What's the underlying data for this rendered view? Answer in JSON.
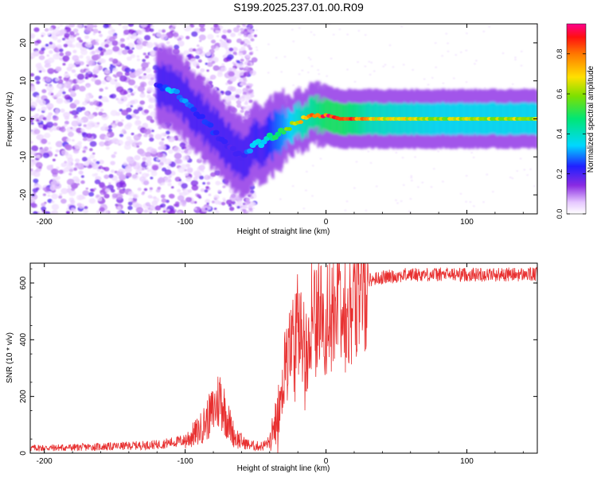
{
  "title": "S199.2025.237.01.00.R09",
  "chart_data": [
    {
      "type": "heatmap",
      "name": "spectrogram",
      "xlabel": "Height of straight line (km)",
      "ylabel": "Frequency (Hz)",
      "xlim": [
        -210,
        150
      ],
      "ylim": [
        -25,
        25
      ],
      "xticks": [
        -200,
        -100,
        0,
        100
      ],
      "xtick_labels": [
        "-200",
        "-100",
        "0",
        "100"
      ],
      "yticks": [
        -20,
        -10,
        0,
        10,
        20
      ],
      "ytick_labels": [
        "-20",
        "-10",
        "0",
        "10",
        "20"
      ],
      "colorbar": {
        "label": "Normalized spectral amplitude",
        "range": [
          0.0,
          0.95
        ],
        "ticks": [
          0.0,
          0.2,
          0.4,
          0.6,
          0.8
        ],
        "tick_labels": [
          "0.0",
          "0.2",
          "0.4",
          "0.6",
          "0.8"
        ],
        "colormap": "rainbow (white-violet-blue-cyan-green-yellow-orange-red-magenta)"
      },
      "ridge": {
        "description": "frequency centre of the dominant signal vs height",
        "x": [
          -120,
          -110,
          -100,
          -90,
          -80,
          -70,
          -60,
          -55,
          -50,
          -45,
          -40,
          -30,
          -20,
          -10,
          0,
          10,
          20,
          30,
          50,
          80,
          110,
          150
        ],
        "y": [
          9,
          8,
          5,
          1,
          -3,
          -7,
          -10,
          -9,
          -6,
          -7,
          -5,
          -3,
          -1,
          1,
          1,
          0,
          0,
          0,
          0,
          0,
          0,
          0
        ],
        "amplitude": [
          0.2,
          0.35,
          0.3,
          0.25,
          0.25,
          0.2,
          0.2,
          0.3,
          0.4,
          0.35,
          0.45,
          0.55,
          0.7,
          0.8,
          0.9,
          0.9,
          0.85,
          0.75,
          0.7,
          0.65,
          0.65,
          0.65
        ]
      },
      "scattered_noise_region": [
        -210,
        -60
      ]
    },
    {
      "type": "line",
      "name": "snr",
      "xlabel": "Height of straight line (km)",
      "ylabel": "SNR (10 * v/v)",
      "xlim": [
        -210,
        150
      ],
      "ylim": [
        0,
        670
      ],
      "xticks": [
        -200,
        -100,
        0,
        100
      ],
      "xtick_labels": [
        "-200",
        "-100",
        "0",
        "100"
      ],
      "yticks": [
        0,
        200,
        400,
        600
      ],
      "ytick_labels": [
        "0",
        "200",
        "400",
        "600"
      ],
      "color": "#e83030",
      "series": [
        {
          "name": "SNR",
          "x": [
            -210,
            -180,
            -150,
            -120,
            -100,
            -90,
            -80,
            -75,
            -70,
            -65,
            -60,
            -55,
            -50,
            -45,
            -40,
            -35,
            -32,
            -28,
            -25,
            -22,
            -20,
            -15,
            -10,
            -5,
            0,
            5,
            10,
            15,
            20,
            25,
            30,
            40,
            60,
            100,
            150
          ],
          "y": [
            18,
            20,
            24,
            30,
            45,
            80,
            150,
            200,
            120,
            60,
            40,
            30,
            25,
            25,
            40,
            120,
            220,
            330,
            360,
            400,
            450,
            380,
            430,
            500,
            450,
            520,
            560,
            460,
            570,
            590,
            610,
            620,
            630,
            630,
            630
          ]
        }
      ]
    }
  ]
}
